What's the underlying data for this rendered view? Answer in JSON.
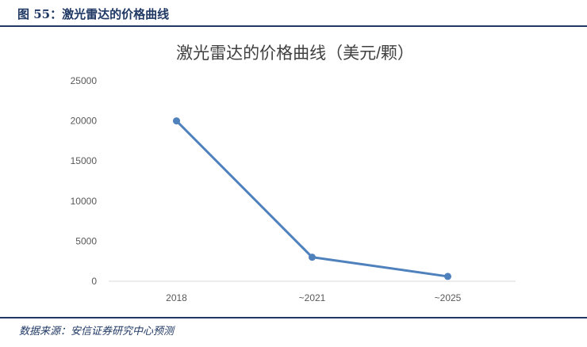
{
  "figure": {
    "label": "图 55：激光雷达的价格曲线",
    "source": "数据来源：安信证券研究中心预测"
  },
  "colors": {
    "header": "#1f3864",
    "series": "#4f81bd",
    "axis_text": "#595959",
    "title_text": "#404040",
    "baseline": "#d9d9d9"
  },
  "chart_data": {
    "type": "line",
    "title": "激光雷达的价格曲线（美元/颗）",
    "categories": [
      "2018",
      "~2021",
      "~2025"
    ],
    "series": [
      {
        "values": [
          20000,
          3000,
          600
        ]
      }
    ],
    "ylim": [
      0,
      25000
    ],
    "yticks": [
      0,
      5000,
      10000,
      15000,
      20000,
      25000
    ],
    "grid": false,
    "legend": "none",
    "markers": true
  }
}
